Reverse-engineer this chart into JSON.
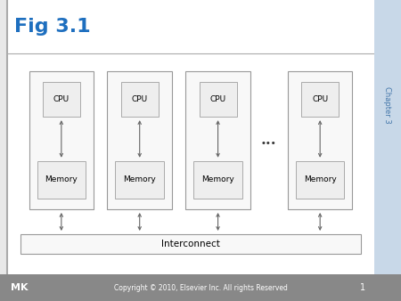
{
  "title": "Fig 3.1",
  "title_color": "#1E6FBF",
  "chapter_text": "Chapter 3",
  "bg_color": "#e8e8e8",
  "header_bg": "#f5f5f5",
  "footer_bg": "#888888",
  "footer_text": "Copyright © 2010, Elsevier Inc. All rights Reserved",
  "footer_page": "1",
  "cpu_labels": [
    "CPU",
    "CPU",
    "CPU",
    "CPU"
  ],
  "mem_labels": [
    "Memory",
    "Memory",
    "Memory",
    "Memory"
  ],
  "interconnect_label": "Interconnect",
  "dots_text": "...",
  "sidebar_color": "#c8d8e8",
  "sidebar_text_color": "#4477aa",
  "line_color": "#aaaaaa",
  "box_face": "#f8f8f8",
  "box_edge": "#999999",
  "inner_face": "#eeeeee",
  "inner_edge": "#aaaaaa",
  "arrow_color": "#666666"
}
